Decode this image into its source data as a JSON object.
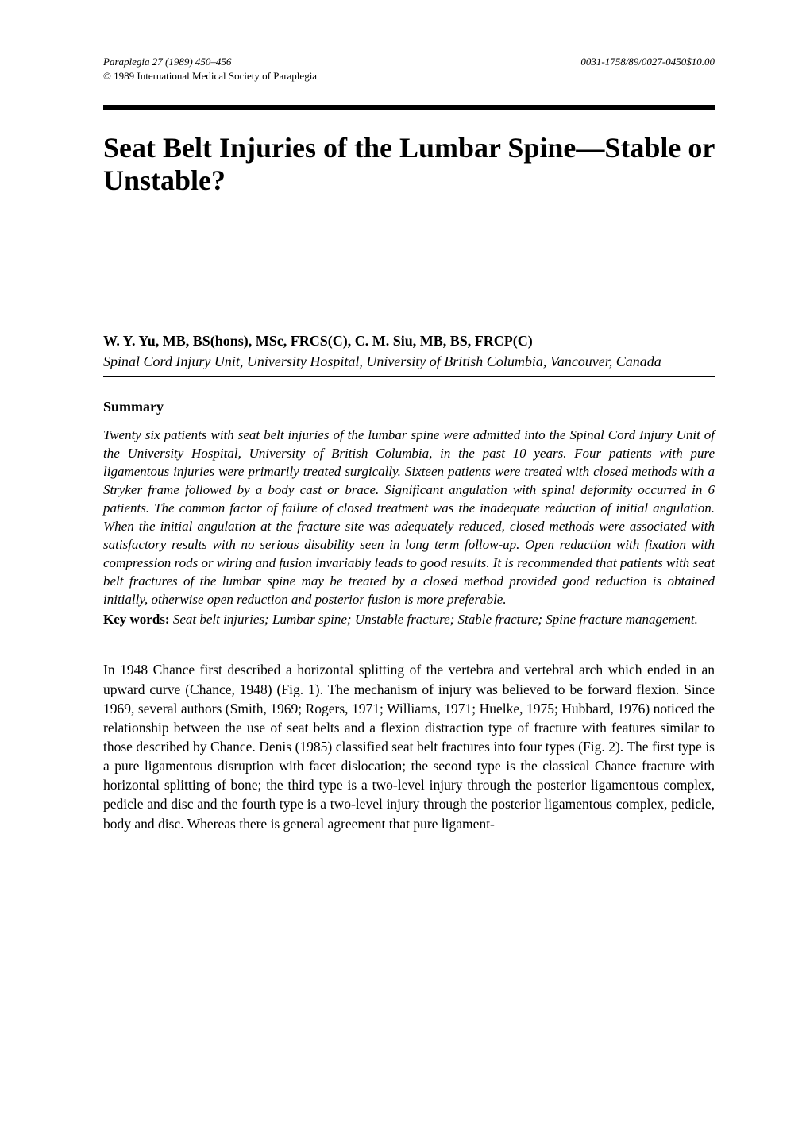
{
  "header": {
    "journal_ref": "Paraplegia 27 (1989) 450–456",
    "issn_line": "0031-1758/89/0027-0450$10.00",
    "copyright": "© 1989 International Medical Society of Paraplegia"
  },
  "title": "Seat Belt Injuries of the Lumbar Spine—Stable or Unstable?",
  "authors": "W. Y. Yu, MB, BS(hons), MSc, FRCS(C), C. M. Siu, MB, BS, FRCP(C)",
  "affiliation": "Spinal Cord Injury Unit, University Hospital, University of British Columbia, Vancouver, Canada",
  "summary": {
    "heading": "Summary",
    "body": "Twenty six patients with seat belt injuries of the lumbar spine were admitted into the Spinal Cord Injury Unit of the University Hospital, University of British Columbia, in the past 10 years. Four patients with pure ligamentous injuries were primarily treated surgically. Sixteen patients were treated with closed methods with a Stryker frame followed by a body cast or brace. Significant angulation with spinal deformity occurred in 6 patients. The common factor of failure of closed treatment was the inadequate reduction of initial angulation. When the initial angulation at the fracture site was adequately reduced, closed methods were associated with satisfactory results with no serious disability seen in long term follow-up. Open reduction with fixation with compression rods or wiring and fusion invariably leads to good results. It is recommended that patients with seat belt fractures of the lumbar spine may be treated by a closed method provided good reduction is obtained initially, otherwise open reduction and posterior fusion is more preferable."
  },
  "keywords": {
    "label": "Key words:",
    "text": " Seat belt injuries; Lumbar spine; Unstable fracture; Stable fracture; Spine fracture management."
  },
  "body_paragraph": "In 1948 Chance first described a horizontal splitting of the vertebra and vertebral arch which ended in an upward curve (Chance, 1948) (Fig. 1). The mechanism of injury was believed to be forward flexion. Since 1969, several authors (Smith, 1969; Rogers, 1971; Williams, 1971; Huelke, 1975; Hubbard, 1976) noticed the relationship between the use of seat belts and a flexion distraction type of fracture with features similar to those described by Chance. Denis (1985) classified seat belt fractures into four types (Fig. 2). The first type is a pure ligamentous disruption with facet dislocation; the second type is the classical Chance fracture with horizontal splitting of bone; the third type is a two-level injury through the posterior ligamentous complex, pedicle and disc and the fourth type is a two-level injury through the posterior ligamentous complex, pedicle, body and disc. Whereas there is general agreement that pure ligament-"
}
